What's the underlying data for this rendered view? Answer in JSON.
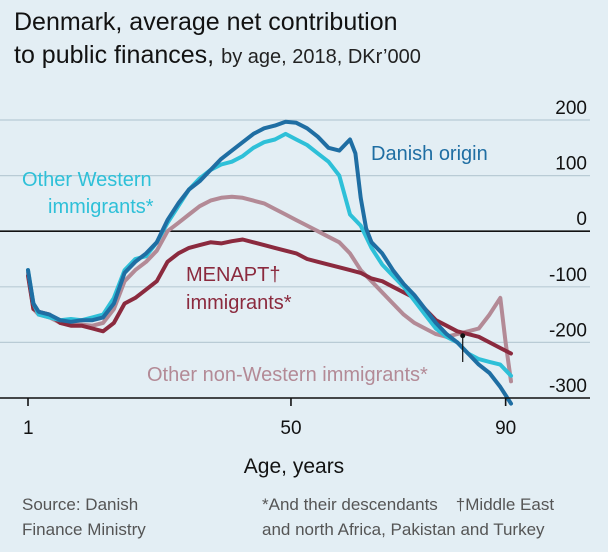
{
  "header": {
    "title_line1": "Denmark, average net contribution",
    "title_line2": "to public finances,",
    "subtitle": "by age, 2018, DKr’000"
  },
  "footer": {
    "source_line1": "Source: Danish",
    "source_line2": "Finance Ministry",
    "note_1": "*And their descendants",
    "note_2": "†Middle East",
    "note_3": "and north Africa, Pakistan and Turkey"
  },
  "colors": {
    "background": "#e3eef4",
    "danish_origin": "#1f6ea3",
    "other_western": "#2ec0d8",
    "menapt": "#8b2a3e",
    "other_non_western": "#b38a96",
    "zero_line": "#121212",
    "gridline": "#b9cbd5"
  },
  "chart_data": {
    "type": "line",
    "title": "Denmark, average net contribution to public finances",
    "subtitle": "by age, 2018, DKr’000",
    "xlabel": "Age, years",
    "ylabel": "",
    "xlim": [
      1,
      91
    ],
    "ylim": [
      -300,
      200
    ],
    "y_ticks": [
      200,
      100,
      0,
      -100,
      -200,
      -300
    ],
    "y_tick_labels": [
      "200",
      "100",
      "0",
      "-100",
      "-200",
      "-300"
    ],
    "x_ticks": [
      1,
      50,
      90
    ],
    "x_tick_labels": [
      "1",
      "50",
      "90"
    ],
    "grid": true,
    "legend": "inline labels",
    "series": [
      {
        "name": "Danish origin",
        "color": "#1f6ea3",
        "x": [
          1,
          2,
          3,
          5,
          7,
          9,
          11,
          13,
          15,
          17,
          19,
          21,
          23,
          25,
          27,
          29,
          31,
          33,
          35,
          37,
          39,
          41,
          43,
          45,
          47,
          49,
          51,
          53,
          55,
          57,
          59,
          61,
          62,
          63,
          64,
          65,
          67,
          69,
          71,
          73,
          75,
          77,
          79,
          81,
          83,
          85,
          87,
          89,
          91
        ],
        "values": [
          -70,
          -130,
          -145,
          -150,
          -160,
          -163,
          -160,
          -160,
          -155,
          -130,
          -75,
          -55,
          -40,
          -20,
          20,
          50,
          75,
          90,
          110,
          130,
          145,
          160,
          175,
          185,
          190,
          197,
          195,
          185,
          170,
          150,
          145,
          165,
          140,
          60,
          5,
          -20,
          -40,
          -70,
          -95,
          -115,
          -140,
          -165,
          -185,
          -200,
          -220,
          -240,
          -255,
          -280,
          -310
        ]
      },
      {
        "name": "Other Western immigrants*",
        "color": "#2ec0d8",
        "x": [
          1,
          2,
          3,
          5,
          7,
          9,
          11,
          13,
          15,
          17,
          19,
          21,
          23,
          25,
          27,
          29,
          31,
          33,
          35,
          37,
          39,
          41,
          43,
          45,
          47,
          49,
          51,
          53,
          55,
          57,
          59,
          61,
          63,
          65,
          67,
          69,
          71,
          73,
          75,
          77,
          79,
          81,
          83,
          85,
          87,
          89,
          91
        ],
        "values": [
          -70,
          -130,
          -150,
          -155,
          -160,
          -158,
          -160,
          -155,
          -150,
          -120,
          -70,
          -50,
          -45,
          -20,
          15,
          45,
          75,
          95,
          110,
          120,
          125,
          135,
          150,
          160,
          165,
          175,
          165,
          155,
          140,
          125,
          100,
          30,
          10,
          -30,
          -60,
          -80,
          -100,
          -125,
          -150,
          -175,
          -190,
          -200,
          -220,
          -230,
          -235,
          -240,
          -260
        ]
      },
      {
        "name": "MENAPT† immigrants*",
        "color": "#8b2a3e",
        "x": [
          1,
          2,
          3,
          5,
          7,
          9,
          11,
          13,
          15,
          17,
          19,
          21,
          23,
          25,
          27,
          29,
          31,
          33,
          35,
          37,
          39,
          41,
          43,
          45,
          47,
          49,
          51,
          53,
          55,
          57,
          59,
          61,
          63,
          65,
          67,
          69,
          71,
          73,
          75,
          77,
          79,
          81,
          83,
          85,
          87,
          89,
          91
        ],
        "values": [
          -80,
          -140,
          -145,
          -150,
          -165,
          -170,
          -170,
          -175,
          -180,
          -165,
          -130,
          -120,
          -105,
          -90,
          -55,
          -40,
          -30,
          -25,
          -20,
          -22,
          -18,
          -15,
          -20,
          -25,
          -30,
          -35,
          -40,
          -50,
          -55,
          -60,
          -65,
          -70,
          -75,
          -85,
          -90,
          -100,
          -110,
          -120,
          -140,
          -160,
          -170,
          -180,
          -185,
          -190,
          -200,
          -210,
          -220
        ]
      },
      {
        "name": "Other non-Western immigrants*",
        "color": "#b38a96",
        "x": [
          1,
          2,
          3,
          5,
          7,
          9,
          11,
          13,
          15,
          17,
          19,
          21,
          23,
          25,
          27,
          29,
          31,
          33,
          35,
          37,
          39,
          41,
          43,
          45,
          47,
          49,
          51,
          53,
          55,
          57,
          59,
          61,
          63,
          65,
          67,
          69,
          71,
          73,
          75,
          77,
          79,
          81,
          83,
          85,
          87,
          89,
          90,
          91
        ],
        "values": [
          -75,
          -140,
          -150,
          -155,
          -165,
          -168,
          -168,
          -170,
          -165,
          -140,
          -90,
          -70,
          -55,
          -35,
          0,
          15,
          30,
          45,
          55,
          60,
          62,
          60,
          55,
          50,
          40,
          30,
          20,
          10,
          0,
          -10,
          -20,
          -40,
          -70,
          -90,
          -110,
          -130,
          -150,
          -165,
          -175,
          -185,
          -190,
          -185,
          -180,
          -175,
          -150,
          -120,
          -200,
          -270
        ]
      }
    ]
  }
}
